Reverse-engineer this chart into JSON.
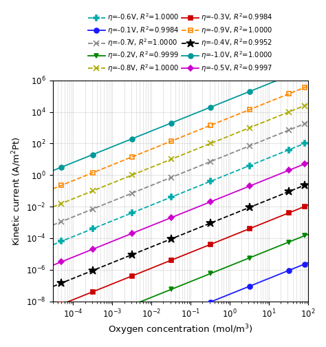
{
  "xlabel": "Oxygen concentration (mol/m³)",
  "ylabel": "Kinetic current (A/m²Pt)",
  "xlim": [
    3e-05,
    100
  ],
  "ylim": [
    1e-08,
    1000000.0
  ],
  "series": [
    {
      "eta": "-0.1V",
      "R2": "0.9984",
      "color": "#1a1aff",
      "marker": "o",
      "markerfilled": true,
      "linestyle": "-",
      "log_intercept": -7.55,
      "slope": 1.0
    },
    {
      "eta": "-0.2V",
      "R2": "0.9999",
      "color": "#008800",
      "marker": "v",
      "markerfilled": true,
      "linestyle": "-",
      "log_intercept": -5.75,
      "slope": 1.0
    },
    {
      "eta": "-0.3V",
      "R2": "0.9984",
      "color": "#cc0000",
      "marker": "s",
      "markerfilled": true,
      "linestyle": "-",
      "log_intercept": -3.9,
      "slope": 1.0
    },
    {
      "eta": "-0.4V",
      "R2": "0.9952",
      "color": "#000000",
      "marker": "*",
      "markerfilled": true,
      "linestyle": "--",
      "log_intercept": -2.55,
      "slope": 1.0
    },
    {
      "eta": "-0.5V",
      "R2": "0.9997",
      "color": "#cc00cc",
      "marker": "D",
      "markerfilled": true,
      "linestyle": "-",
      "log_intercept": -1.2,
      "slope": 1.0
    },
    {
      "eta": "-0.6V",
      "R2": "1.0000",
      "color": "#00aaaa",
      "marker": "P",
      "markerfilled": true,
      "linestyle": "--",
      "log_intercept": 0.1,
      "slope": 1.0
    },
    {
      "eta": "-0.7V",
      "R2": "1.0000",
      "color": "#888888",
      "marker": "x",
      "markerfilled": false,
      "linestyle": "--",
      "log_intercept": 1.35,
      "slope": 1.0
    },
    {
      "eta": "-0.8V",
      "R2": "1.0000",
      "color": "#aaaa00",
      "marker": "x",
      "markerfilled": false,
      "linestyle": "--",
      "log_intercept": 2.5,
      "slope": 1.0
    },
    {
      "eta": "-0.9V",
      "R2": "1.0000",
      "color": "#ff8800",
      "marker": "s",
      "markerfilled": false,
      "linestyle": "--",
      "log_intercept": 3.65,
      "slope": 1.0
    },
    {
      "eta": "-1.0V",
      "R2": "1.0000",
      "color": "#009999",
      "marker": "o",
      "markerfilled": true,
      "linestyle": "-",
      "log_intercept": 4.8,
      "slope": 1.0
    }
  ],
  "left_legend_indices": [
    5,
    6,
    7,
    8,
    9
  ],
  "right_legend_indices": [
    0,
    1,
    2,
    3,
    4
  ],
  "marker_sizes": {
    "o": 5,
    "v": 5,
    "s": 4,
    "*": 9,
    "D": 4,
    "P": 6,
    "x": 6,
    "^": 5
  }
}
